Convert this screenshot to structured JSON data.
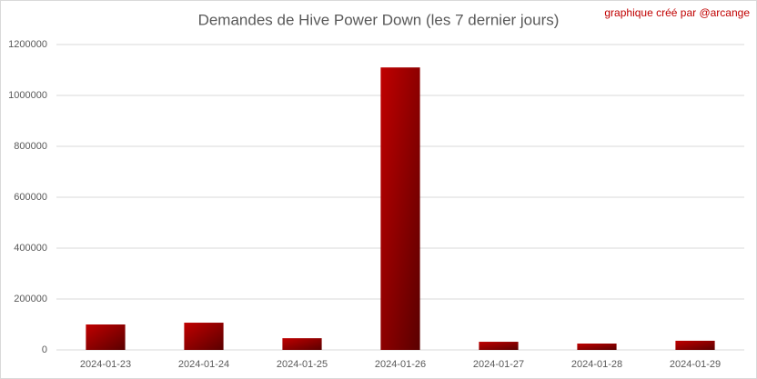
{
  "chart_data": {
    "type": "bar",
    "title": "Demandes de Hive Power Down (les 7 dernier jours)",
    "annotation": "graphique créé par @arcange",
    "categories": [
      "2024-01-23",
      "2024-01-24",
      "2024-01-25",
      "2024-01-26",
      "2024-01-27",
      "2024-01-28",
      "2024-01-29"
    ],
    "values": [
      100000,
      107000,
      46000,
      1110000,
      32000,
      25000,
      36000
    ],
    "color": "#c00000",
    "ylim": [
      0,
      1200000
    ],
    "yticks": [
      0,
      200000,
      400000,
      600000,
      800000,
      1000000,
      1200000
    ],
    "grid": true
  }
}
